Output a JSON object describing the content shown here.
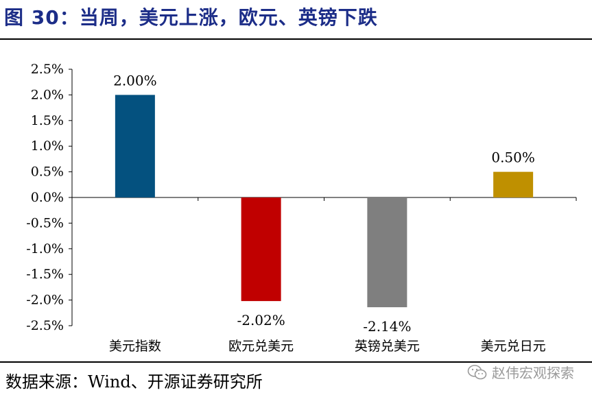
{
  "header": {
    "title": "图 30：当周，美元上涨，欧元、英镑下跌"
  },
  "footer": {
    "source": "数据来源：Wind、开源证券研究所",
    "watermark": "赵伟宏观探索",
    "watermark_icon": "wechat-icon"
  },
  "chart_data": {
    "type": "bar",
    "title": "",
    "xlabel": "",
    "ylabel": "",
    "categories": [
      "美元指数",
      "欧元兑美元",
      "英镑兑美元",
      "美元兑日元"
    ],
    "values": [
      2.0,
      -2.02,
      -2.14,
      0.5
    ],
    "value_labels": [
      "2.00%",
      "-2.02%",
      "-2.14%",
      "0.50%"
    ],
    "colors": [
      "#04517f",
      "#c00000",
      "#7f7f7f",
      "#bf9000"
    ],
    "ylim": [
      -2.5,
      2.5
    ],
    "yticks": [
      2.5,
      2.0,
      1.5,
      1.0,
      0.5,
      0.0,
      -0.5,
      -1.0,
      -1.5,
      -2.0,
      -2.5
    ],
    "ytick_labels": [
      "2.5%",
      "2.0%",
      "1.5%",
      "1.0%",
      "0.5%",
      "0.0%",
      "-0.5%",
      "-1.0%",
      "-1.5%",
      "-2.0%",
      "-2.5%"
    ],
    "grid": false,
    "legend": "none"
  }
}
